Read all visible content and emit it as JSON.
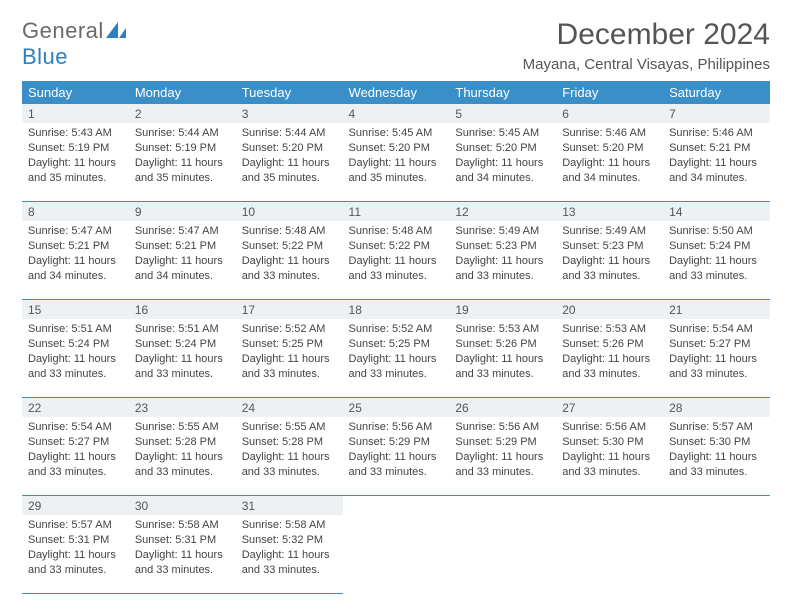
{
  "logo": {
    "text1": "General",
    "text2": "Blue"
  },
  "title": "December 2024",
  "location": "Mayana, Central Visayas, Philippines",
  "colors": {
    "header_bg": "#3b8fc9",
    "header_text": "#ffffff",
    "daynum_bg": "#eef1f3",
    "rule": "#3b8fc9",
    "body_text": "#444444",
    "title_text": "#555555"
  },
  "weekdays": [
    "Sunday",
    "Monday",
    "Tuesday",
    "Wednesday",
    "Thursday",
    "Friday",
    "Saturday"
  ],
  "weeks": [
    [
      {
        "n": "1",
        "sr": "5:43 AM",
        "ss": "5:19 PM",
        "dl": "11 hours and 35 minutes."
      },
      {
        "n": "2",
        "sr": "5:44 AM",
        "ss": "5:19 PM",
        "dl": "11 hours and 35 minutes."
      },
      {
        "n": "3",
        "sr": "5:44 AM",
        "ss": "5:20 PM",
        "dl": "11 hours and 35 minutes."
      },
      {
        "n": "4",
        "sr": "5:45 AM",
        "ss": "5:20 PM",
        "dl": "11 hours and 35 minutes."
      },
      {
        "n": "5",
        "sr": "5:45 AM",
        "ss": "5:20 PM",
        "dl": "11 hours and 34 minutes."
      },
      {
        "n": "6",
        "sr": "5:46 AM",
        "ss": "5:20 PM",
        "dl": "11 hours and 34 minutes."
      },
      {
        "n": "7",
        "sr": "5:46 AM",
        "ss": "5:21 PM",
        "dl": "11 hours and 34 minutes."
      }
    ],
    [
      {
        "n": "8",
        "sr": "5:47 AM",
        "ss": "5:21 PM",
        "dl": "11 hours and 34 minutes."
      },
      {
        "n": "9",
        "sr": "5:47 AM",
        "ss": "5:21 PM",
        "dl": "11 hours and 34 minutes."
      },
      {
        "n": "10",
        "sr": "5:48 AM",
        "ss": "5:22 PM",
        "dl": "11 hours and 33 minutes."
      },
      {
        "n": "11",
        "sr": "5:48 AM",
        "ss": "5:22 PM",
        "dl": "11 hours and 33 minutes."
      },
      {
        "n": "12",
        "sr": "5:49 AM",
        "ss": "5:23 PM",
        "dl": "11 hours and 33 minutes."
      },
      {
        "n": "13",
        "sr": "5:49 AM",
        "ss": "5:23 PM",
        "dl": "11 hours and 33 minutes."
      },
      {
        "n": "14",
        "sr": "5:50 AM",
        "ss": "5:24 PM",
        "dl": "11 hours and 33 minutes."
      }
    ],
    [
      {
        "n": "15",
        "sr": "5:51 AM",
        "ss": "5:24 PM",
        "dl": "11 hours and 33 minutes."
      },
      {
        "n": "16",
        "sr": "5:51 AM",
        "ss": "5:24 PM",
        "dl": "11 hours and 33 minutes."
      },
      {
        "n": "17",
        "sr": "5:52 AM",
        "ss": "5:25 PM",
        "dl": "11 hours and 33 minutes."
      },
      {
        "n": "18",
        "sr": "5:52 AM",
        "ss": "5:25 PM",
        "dl": "11 hours and 33 minutes."
      },
      {
        "n": "19",
        "sr": "5:53 AM",
        "ss": "5:26 PM",
        "dl": "11 hours and 33 minutes."
      },
      {
        "n": "20",
        "sr": "5:53 AM",
        "ss": "5:26 PM",
        "dl": "11 hours and 33 minutes."
      },
      {
        "n": "21",
        "sr": "5:54 AM",
        "ss": "5:27 PM",
        "dl": "11 hours and 33 minutes."
      }
    ],
    [
      {
        "n": "22",
        "sr": "5:54 AM",
        "ss": "5:27 PM",
        "dl": "11 hours and 33 minutes."
      },
      {
        "n": "23",
        "sr": "5:55 AM",
        "ss": "5:28 PM",
        "dl": "11 hours and 33 minutes."
      },
      {
        "n": "24",
        "sr": "5:55 AM",
        "ss": "5:28 PM",
        "dl": "11 hours and 33 minutes."
      },
      {
        "n": "25",
        "sr": "5:56 AM",
        "ss": "5:29 PM",
        "dl": "11 hours and 33 minutes."
      },
      {
        "n": "26",
        "sr": "5:56 AM",
        "ss": "5:29 PM",
        "dl": "11 hours and 33 minutes."
      },
      {
        "n": "27",
        "sr": "5:56 AM",
        "ss": "5:30 PM",
        "dl": "11 hours and 33 minutes."
      },
      {
        "n": "28",
        "sr": "5:57 AM",
        "ss": "5:30 PM",
        "dl": "11 hours and 33 minutes."
      }
    ],
    [
      {
        "n": "29",
        "sr": "5:57 AM",
        "ss": "5:31 PM",
        "dl": "11 hours and 33 minutes."
      },
      {
        "n": "30",
        "sr": "5:58 AM",
        "ss": "5:31 PM",
        "dl": "11 hours and 33 minutes."
      },
      {
        "n": "31",
        "sr": "5:58 AM",
        "ss": "5:32 PM",
        "dl": "11 hours and 33 minutes."
      },
      null,
      null,
      null,
      null
    ]
  ],
  "labels": {
    "sunrise": "Sunrise: ",
    "sunset": "Sunset: ",
    "daylight": "Daylight: "
  }
}
